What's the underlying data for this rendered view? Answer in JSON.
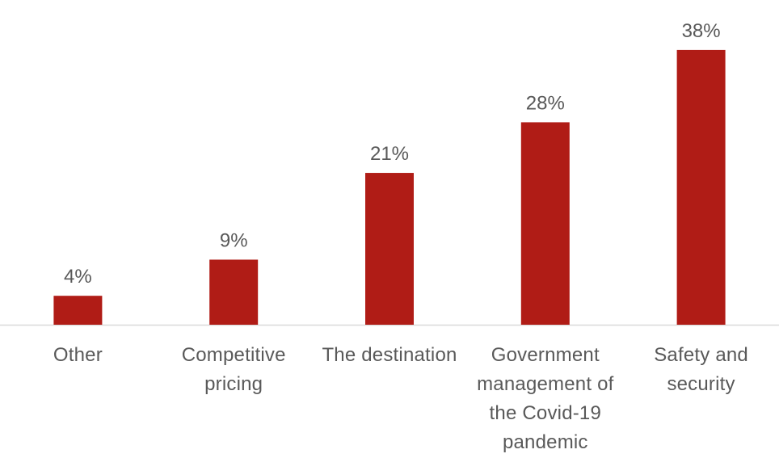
{
  "colors": {
    "bar": "#b01c16",
    "axis": "#d9d9d9",
    "text": "#595959"
  },
  "chart_data": {
    "type": "bar",
    "categories": [
      "Other",
      "Competitive pricing",
      "The destination",
      "Government management of the Covid-19 pandemic",
      "Safety and security"
    ],
    "category_lines": [
      [
        "Other"
      ],
      [
        "Competitive",
        "pricing"
      ],
      [
        "The destination"
      ],
      [
        "Government",
        "management of",
        "the Covid-19",
        "pandemic"
      ],
      [
        "Safety and",
        "security"
      ]
    ],
    "values": [
      4,
      9,
      21,
      28,
      38
    ],
    "value_labels": [
      "4%",
      "9%",
      "21%",
      "28%",
      "38%"
    ],
    "unit": "%",
    "title": "",
    "xlabel": "",
    "ylabel": "",
    "ylim": [
      0,
      40
    ],
    "grid": false,
    "legend": "none"
  }
}
